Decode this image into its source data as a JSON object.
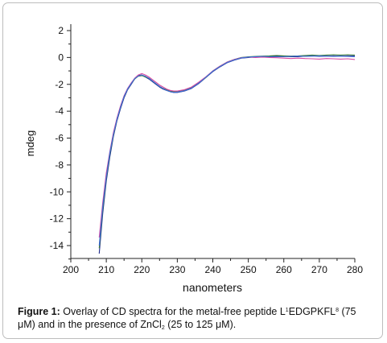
{
  "chart_data": {
    "type": "line",
    "xlabel": "nanometers",
    "ylabel": "mdeg",
    "xlim": [
      200,
      280
    ],
    "ylim": [
      -15,
      2
    ],
    "x_ticks": [
      200,
      210,
      220,
      230,
      240,
      250,
      260,
      270,
      280
    ],
    "y_ticks": [
      2,
      0,
      -2,
      -4,
      -6,
      -8,
      -10,
      -12,
      -14
    ],
    "grid": false,
    "x": [
      208,
      209,
      210,
      211,
      212,
      213,
      214,
      215,
      216,
      217,
      218,
      219,
      220,
      221,
      222,
      223,
      224,
      225,
      226,
      227,
      228,
      229,
      230,
      232,
      234,
      236,
      238,
      240,
      242,
      244,
      246,
      248,
      250,
      252,
      254,
      256,
      258,
      260,
      262,
      264,
      266,
      268,
      270,
      272,
      274,
      276,
      278,
      280
    ],
    "series": [
      {
        "color": "#1e2a8a",
        "values": [
          -14.6,
          -11.6,
          -9.2,
          -7.4,
          -5.9,
          -4.7,
          -3.8,
          -3.0,
          -2.4,
          -2.0,
          -1.6,
          -1.35,
          -1.3,
          -1.45,
          -1.6,
          -1.8,
          -2.0,
          -2.2,
          -2.35,
          -2.45,
          -2.55,
          -2.6,
          -2.6,
          -2.5,
          -2.3,
          -1.95,
          -1.5,
          -1.05,
          -0.7,
          -0.4,
          -0.2,
          -0.05,
          0.0,
          0.05,
          0.08,
          0.1,
          0.1,
          0.08,
          0.05,
          0.06,
          0.1,
          0.12,
          0.08,
          0.1,
          0.12,
          0.1,
          0.12,
          0.1
        ]
      },
      {
        "color": "#3a7a3a",
        "values": [
          -14.2,
          -11.3,
          -9.0,
          -7.2,
          -5.8,
          -4.6,
          -3.7,
          -2.9,
          -2.35,
          -1.95,
          -1.6,
          -1.4,
          -1.35,
          -1.45,
          -1.55,
          -1.75,
          -1.95,
          -2.15,
          -2.3,
          -2.4,
          -2.5,
          -2.55,
          -2.55,
          -2.45,
          -2.25,
          -1.9,
          -1.5,
          -1.0,
          -0.65,
          -0.35,
          -0.15,
          0.0,
          0.05,
          0.08,
          0.1,
          0.12,
          0.15,
          0.12,
          0.1,
          0.12,
          0.15,
          0.18,
          0.15,
          0.18,
          0.2,
          0.18,
          0.2,
          0.18
        ]
      },
      {
        "color": "#d64aa0",
        "values": [
          -13.4,
          -10.8,
          -8.6,
          -7.0,
          -5.6,
          -4.5,
          -3.6,
          -2.85,
          -2.3,
          -1.9,
          -1.55,
          -1.3,
          -1.2,
          -1.3,
          -1.45,
          -1.65,
          -1.85,
          -2.05,
          -2.2,
          -2.35,
          -2.45,
          -2.5,
          -2.5,
          -2.4,
          -2.2,
          -1.85,
          -1.45,
          -1.0,
          -0.65,
          -0.35,
          -0.15,
          -0.02,
          0.02,
          0.0,
          0.02,
          0.0,
          -0.02,
          -0.05,
          -0.08,
          -0.05,
          -0.08,
          -0.1,
          -0.12,
          -0.08,
          -0.1,
          -0.12,
          -0.1,
          -0.15
        ]
      },
      {
        "color": "#3d6fd8",
        "values": [
          -14.0,
          -11.1,
          -8.9,
          -7.1,
          -5.75,
          -4.6,
          -3.7,
          -2.9,
          -2.35,
          -1.95,
          -1.58,
          -1.38,
          -1.3,
          -1.4,
          -1.55,
          -1.75,
          -1.95,
          -2.15,
          -2.3,
          -2.45,
          -2.55,
          -2.6,
          -2.58,
          -2.48,
          -2.28,
          -1.92,
          -1.48,
          -1.02,
          -0.68,
          -0.38,
          -0.18,
          -0.03,
          0.03,
          0.06,
          0.08,
          0.06,
          0.05,
          0.06,
          0.08,
          0.1,
          0.08,
          0.1,
          0.12,
          0.1,
          0.08,
          0.1,
          0.08,
          0.06
        ]
      }
    ]
  },
  "caption": {
    "label": "Figure 1:",
    "t1": " Overlay of CD spectra for the metal-free peptide L",
    "sup1": "1",
    "t2": "EDGPKFL",
    "sup2": "8",
    "t3": " (75 μM) and in the presence of ZnCl",
    "sub1": "2",
    "t4": " (25 to 125 μM)."
  }
}
